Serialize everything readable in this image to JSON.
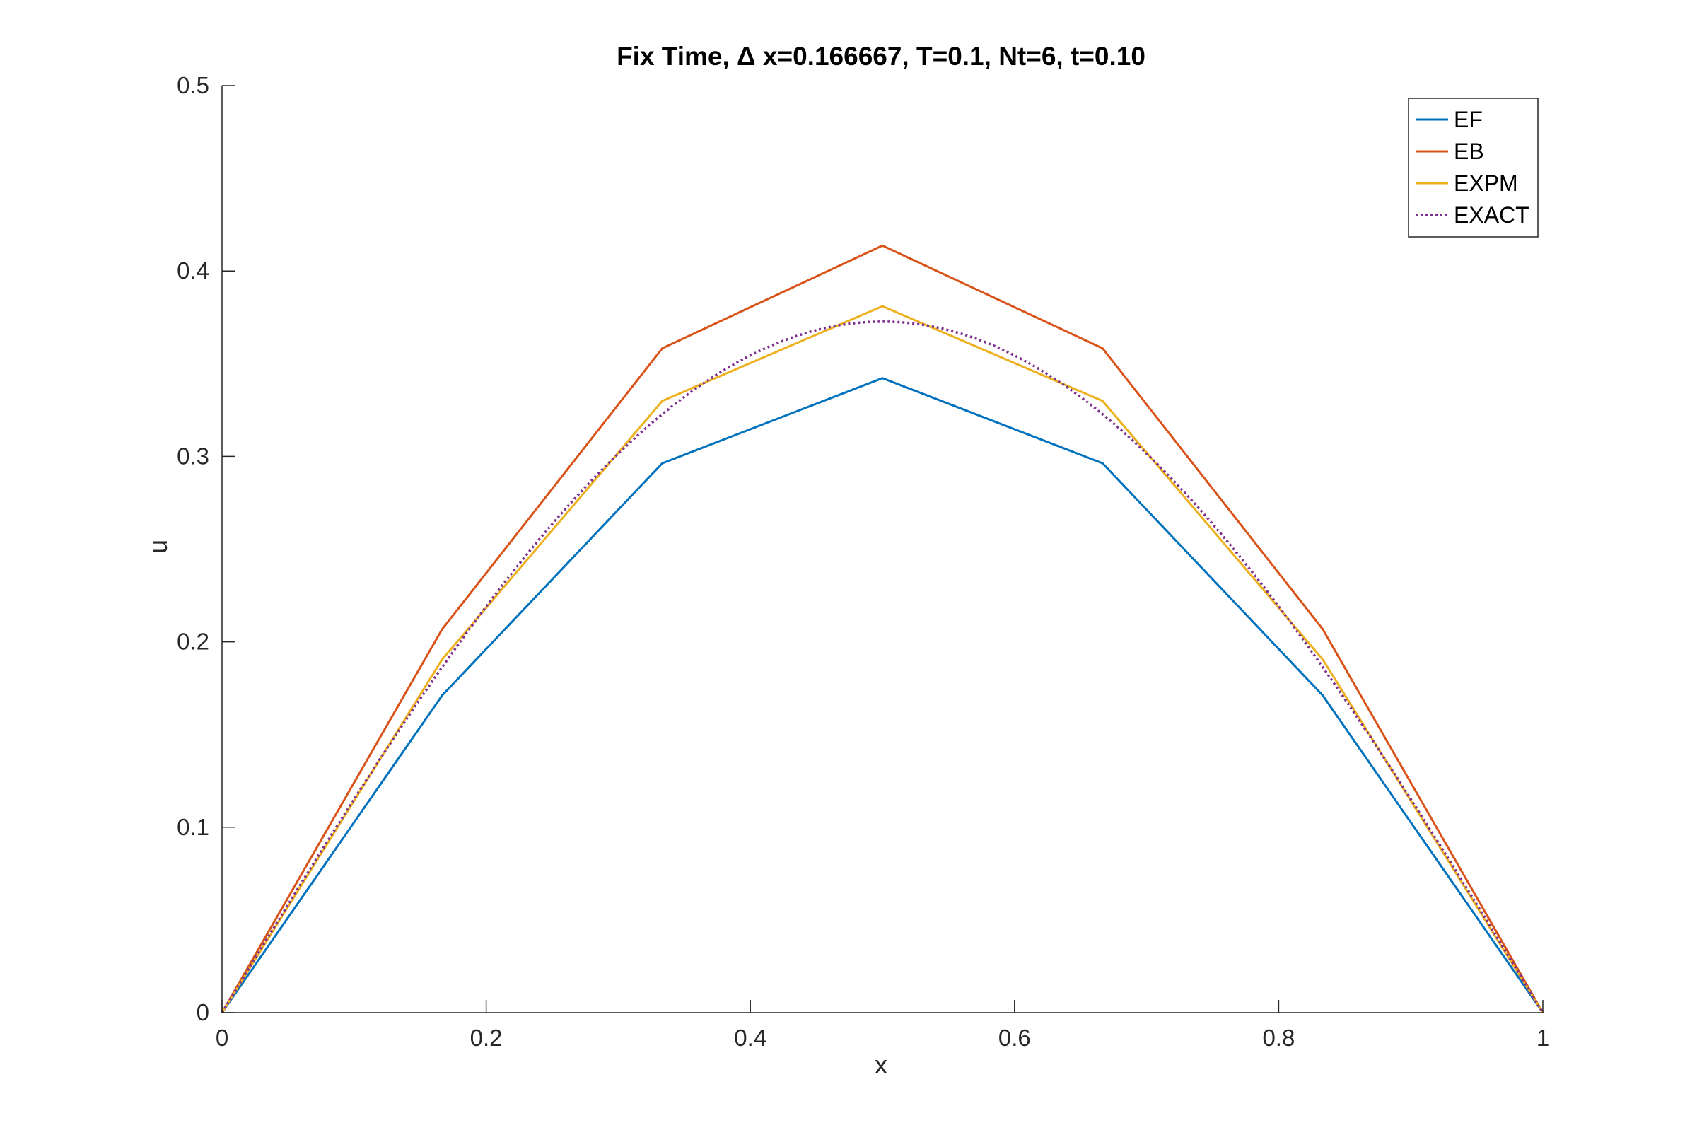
{
  "chart_data": {
    "type": "line",
    "title": "Fix Time, Δ x=0.166667, T=0.1, Nt=6, t=0.10",
    "xlabel": "x",
    "ylabel": "u",
    "xlim": [
      0,
      1
    ],
    "ylim": [
      0,
      0.5
    ],
    "xticks": [
      0,
      0.2,
      0.4,
      0.6,
      0.8,
      1
    ],
    "xtick_labels": [
      "0",
      "0.2",
      "0.4",
      "0.6",
      "0.8",
      "1"
    ],
    "yticks": [
      0,
      0.1,
      0.2,
      0.3,
      0.4,
      0.5
    ],
    "ytick_labels": [
      "0",
      "0.1",
      "0.2",
      "0.3",
      "0.4",
      "0.5"
    ],
    "grid": false,
    "legend_position": "top-right",
    "series": [
      {
        "name": "EF",
        "color": "#0072BD",
        "style": "solid",
        "x": [
          0,
          0.16667,
          0.33333,
          0.5,
          0.66667,
          0.83333,
          1
        ],
        "y": [
          0,
          0.1711,
          0.2963,
          0.3422,
          0.2963,
          0.1711,
          0
        ]
      },
      {
        "name": "EB",
        "color": "#D95319",
        "style": "solid",
        "x": [
          0,
          0.16667,
          0.33333,
          0.5,
          0.66667,
          0.83333,
          1
        ],
        "y": [
          0,
          0.2068,
          0.3583,
          0.4137,
          0.3583,
          0.2068,
          0
        ]
      },
      {
        "name": "EXPM",
        "color": "#EDB120",
        "style": "solid",
        "x": [
          0,
          0.16667,
          0.33333,
          0.5,
          0.66667,
          0.83333,
          1
        ],
        "y": [
          0,
          0.1905,
          0.3299,
          0.381,
          0.3299,
          0.1905,
          0
        ]
      },
      {
        "name": "EXACT",
        "color": "#7E2F8E",
        "style": "dotted",
        "function": "0.3727*sin(pi*x)",
        "x_range": [
          0,
          1
        ]
      }
    ]
  }
}
